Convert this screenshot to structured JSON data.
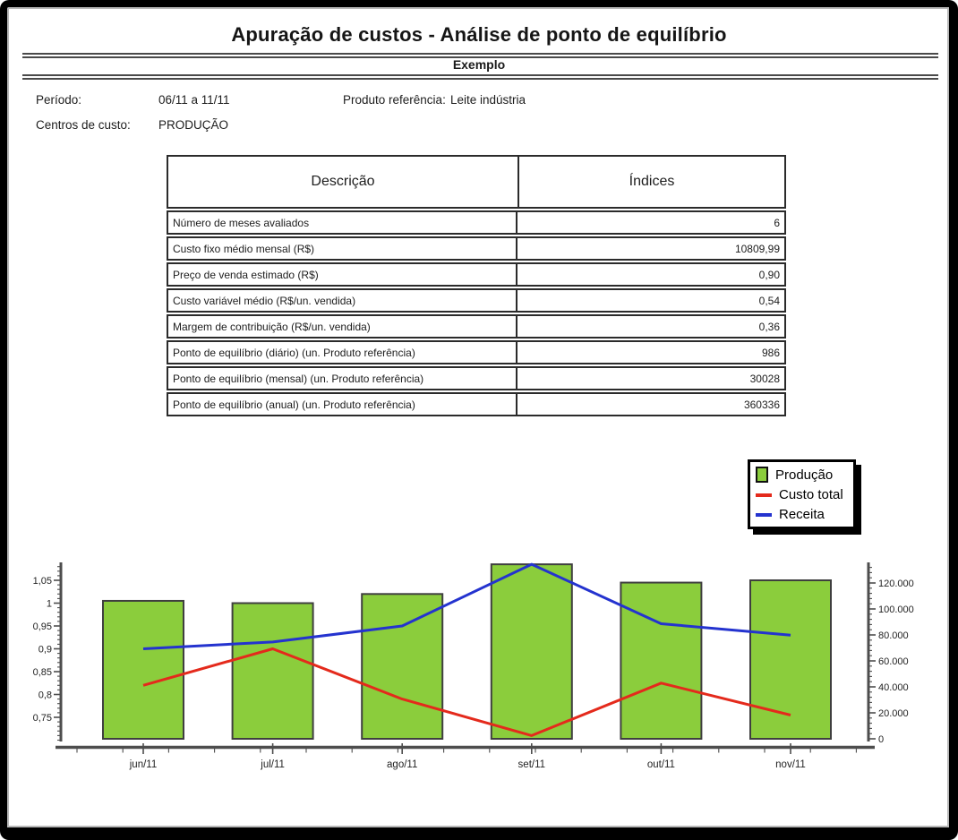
{
  "page": {
    "title": "Apuração de custos - Análise de ponto de equilíbrio",
    "subtitle": "Exemplo"
  },
  "info": {
    "periodo_label": "Período:",
    "periodo_value": "06/11 a 11/11",
    "produto_label": "Produto referência:",
    "produto_value": "Leite indústria",
    "centros_label": "Centros de custo:",
    "centros_value": "PRODUÇÃO"
  },
  "table": {
    "headers": [
      "Descrição",
      "Índices"
    ],
    "rows": [
      {
        "label": "Número de meses avaliados",
        "value": "6"
      },
      {
        "label": "Custo fixo médio mensal (R$)",
        "value": "10809,99"
      },
      {
        "label": "Preço de venda estimado (R$)",
        "value": "0,90"
      },
      {
        "label": "Custo variável médio (R$/un. vendida)",
        "value": "0,54"
      },
      {
        "label": "Margem de contribuição (R$/un. vendida)",
        "value": "0,36"
      },
      {
        "label": "Ponto de equilíbrio (diário) (un. Produto referência)",
        "value": "986"
      },
      {
        "label": "Ponto de equilíbrio (mensal) (un. Produto referência)",
        "value": "30028"
      },
      {
        "label": "Ponto de equilíbrio (anual) (un. Produto referência)",
        "value": "360336"
      }
    ]
  },
  "chart_data": {
    "type": "combo",
    "categories": [
      "jun/11",
      "jul/11",
      "ago/11",
      "set/11",
      "out/11",
      "nov/11"
    ],
    "series": [
      {
        "name": "Produção",
        "type": "bar",
        "color": "#8BCD3C",
        "border_color": "#3f3f3f",
        "values": [
          1.005,
          1.0,
          1.02,
          1.085,
          1.045,
          1.05
        ]
      },
      {
        "name": "Custo total",
        "type": "line",
        "color": "#E42A1C",
        "values": [
          0.82,
          0.9,
          0.79,
          0.71,
          0.825,
          0.755
        ]
      },
      {
        "name": "Receita",
        "type": "line",
        "color": "#2433CF",
        "values": [
          0.9,
          0.915,
          0.95,
          1.085,
          0.955,
          0.93
        ]
      }
    ],
    "left_axis": {
      "ticks": [
        "1,05",
        "1",
        "0,95",
        "0,9",
        "0,85",
        "0,8",
        "0,75"
      ],
      "tick_values": [
        1.05,
        1.0,
        0.95,
        0.9,
        0.85,
        0.8,
        0.75
      ],
      "minor_step": 0.01,
      "range": [
        0.695,
        1.095
      ]
    },
    "right_axis": {
      "ticks": [
        "120.000",
        "100.000",
        "80.000",
        "60.000",
        "40.000",
        "20.000",
        "0"
      ],
      "tick_values": [
        120000,
        100000,
        80000,
        60000,
        40000,
        20000,
        0
      ],
      "minor_step": 4000,
      "range": [
        0,
        137000
      ]
    },
    "value_scale_note": "series values read on left axis; bars rest on right-axis zero line",
    "legend_position": "top-right",
    "grid": false
  }
}
